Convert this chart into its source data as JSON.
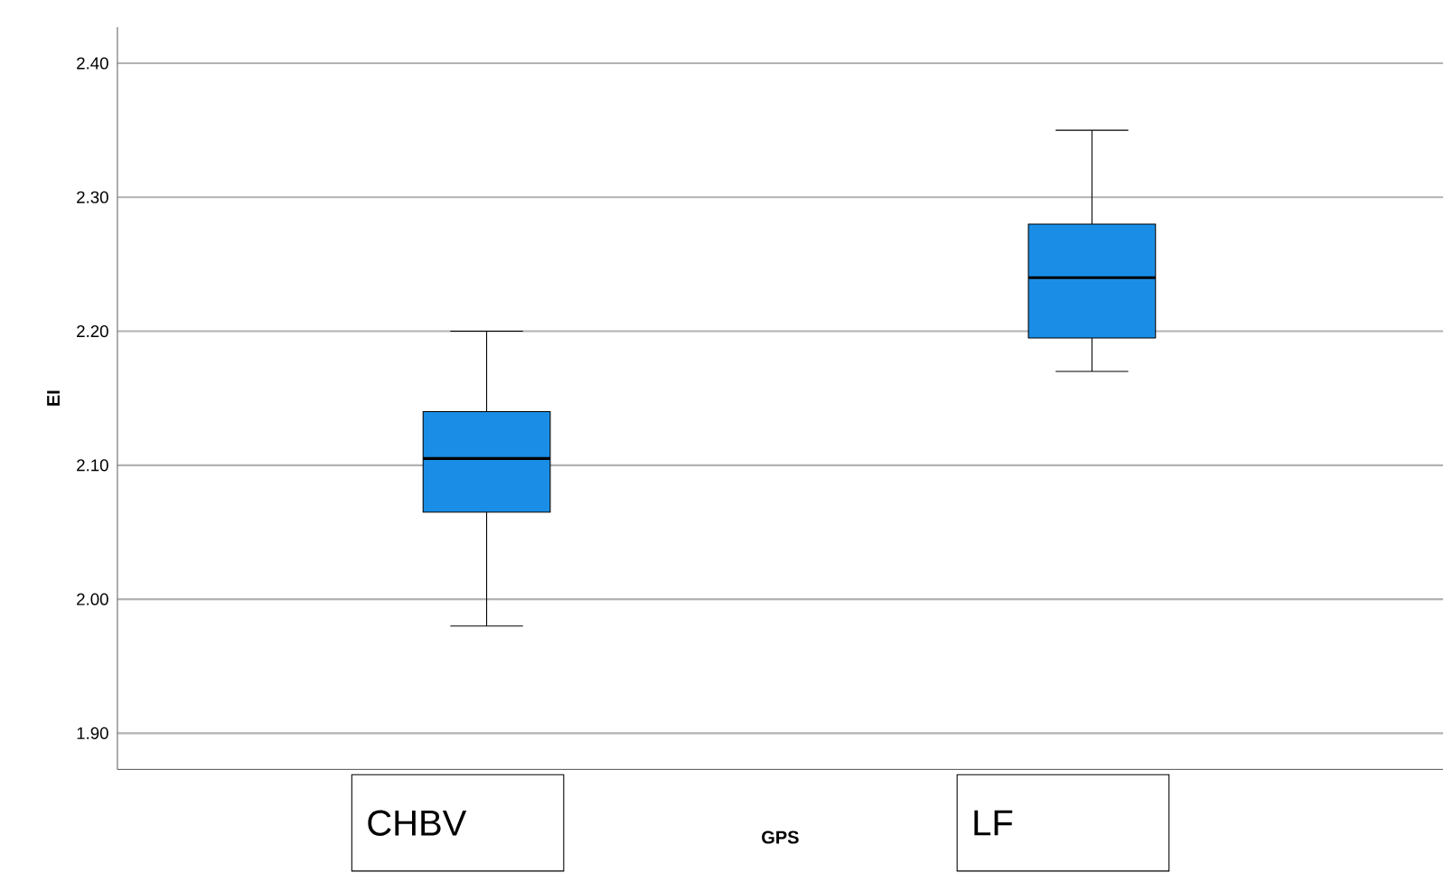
{
  "chart_data": {
    "type": "box",
    "xlabel": "GPS",
    "ylabel": "EI",
    "categories": [
      "CHBV",
      "LF"
    ],
    "boxes": [
      {
        "low": 1.98,
        "q1": 2.065,
        "median": 2.105,
        "q3": 2.14,
        "high": 2.2
      },
      {
        "low": 2.17,
        "q1": 2.195,
        "median": 2.24,
        "q3": 2.28,
        "high": 2.35
      }
    ],
    "color": "#1a8ee6",
    "ylim": [
      1.873,
      2.427
    ],
    "yticks": [
      {
        "value": 1.9,
        "label": "1.90"
      },
      {
        "value": 2.0,
        "label": "2.00"
      },
      {
        "value": 2.1,
        "label": "2.10"
      },
      {
        "value": 2.2,
        "label": "2.20"
      },
      {
        "value": 2.3,
        "label": "2.30"
      },
      {
        "value": 2.4,
        "label": "2.40"
      }
    ],
    "grid": "y"
  }
}
